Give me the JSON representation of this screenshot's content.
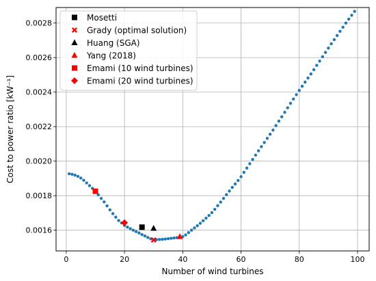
{
  "chart_data": {
    "type": "scatter",
    "xlabel": "Number of wind turbines",
    "ylabel": "Cost to power ratio [kW⁻¹]",
    "xlim": [
      -3.5,
      104
    ],
    "ylim": [
      0.00148,
      0.00289
    ],
    "x_ticks": [
      0,
      20,
      40,
      60,
      80,
      100
    ],
    "x_tick_labels": [
      "0",
      "20",
      "40",
      "60",
      "80",
      "100"
    ],
    "y_ticks": [
      0.0016,
      0.0018,
      0.002,
      0.0022,
      0.0024,
      0.0026,
      0.0028
    ],
    "y_tick_labels": [
      "0.0016",
      "0.0018",
      "0.0020",
      "0.0022",
      "0.0024",
      "0.0026",
      "0.0028"
    ],
    "grid": true,
    "legend_position": "top-left",
    "curve": {
      "color": "#1f77b4",
      "x": [
        1,
        2,
        3,
        4,
        5,
        6,
        7,
        8,
        9,
        10,
        11,
        12,
        13,
        14,
        15,
        16,
        17,
        18,
        19,
        20,
        21,
        22,
        23,
        24,
        25,
        26,
        27,
        28,
        29,
        30,
        31,
        32,
        33,
        34,
        35,
        36,
        37,
        38,
        39,
        40,
        41,
        42,
        43,
        44,
        45,
        46,
        47,
        48,
        49,
        50,
        51,
        52,
        53,
        54,
        55,
        56,
        57,
        58,
        59,
        60,
        61,
        62,
        63,
        64,
        65,
        66,
        67,
        68,
        69,
        70,
        71,
        72,
        73,
        74,
        75,
        76,
        77,
        78,
        79,
        80,
        81,
        82,
        83,
        84,
        85,
        86,
        87,
        88,
        89,
        90,
        91,
        92,
        93,
        94,
        95,
        96,
        97,
        98,
        99
      ],
      "y": [
        0.001927,
        0.001924,
        0.001919,
        0.001912,
        0.001902,
        0.001889,
        0.001874,
        0.001858,
        0.001842,
        0.001826,
        0.001805,
        0.001784,
        0.001764,
        0.001741,
        0.001718,
        0.001696,
        0.001676,
        0.001656,
        0.001642,
        0.001628,
        0.001618,
        0.001609,
        0.0016,
        0.001592,
        0.001584,
        0.001575,
        0.001567,
        0.001558,
        0.00155,
        0.001544,
        0.001545,
        0.001546,
        0.001547,
        0.001549,
        0.001551,
        0.001553,
        0.001555,
        0.001557,
        0.001558,
        0.001563,
        0.001573,
        0.001586,
        0.0016,
        0.001613,
        0.001626,
        0.00164,
        0.001655,
        0.00167,
        0.001685,
        0.001702,
        0.001721,
        0.001742,
        0.001763,
        0.001784,
        0.001806,
        0.001827,
        0.001848,
        0.001868,
        0.001888,
        0.00191,
        0.001935,
        0.00196,
        0.001985,
        0.00201,
        0.002035,
        0.00206,
        0.002084,
        0.002108,
        0.002132,
        0.002156,
        0.00218,
        0.002206,
        0.002232,
        0.002257,
        0.002283,
        0.002309,
        0.002335,
        0.00236,
        0.002385,
        0.00241,
        0.002434,
        0.002458,
        0.002482,
        0.002505,
        0.00253,
        0.002555,
        0.00258,
        0.002605,
        0.00263,
        0.002655,
        0.00268,
        0.002704,
        0.002728,
        0.002752,
        0.002776,
        0.0028,
        0.002823,
        0.002845,
        0.002868
      ]
    },
    "series": [
      {
        "name": "Mosetti",
        "marker": "square",
        "color": "#000000",
        "x": [
          26
        ],
        "y": [
          0.0016175
        ]
      },
      {
        "name": "Grady (optimal solution)",
        "marker": "x",
        "color": "#ff0000",
        "x": [
          30
        ],
        "y": [
          0.0015436
        ]
      },
      {
        "name": "Huang (SGA)",
        "marker": "triangle",
        "color": "#000000",
        "x": [
          30
        ],
        "y": [
          0.0016106
        ]
      },
      {
        "name": "Yang (2018)",
        "marker": "triangle",
        "color": "#ff0000",
        "x": [
          39
        ],
        "y": [
          0.0015625
        ]
      },
      {
        "name": "Emami (10 wind turbines)",
        "marker": "square",
        "color": "#ff0000",
        "x": [
          10
        ],
        "y": [
          0.0018257
        ]
      },
      {
        "name": "Emami (20 wind turbines)",
        "marker": "diamond",
        "color": "#ff0000",
        "x": [
          20
        ],
        "y": [
          0.0016434
        ]
      }
    ]
  }
}
